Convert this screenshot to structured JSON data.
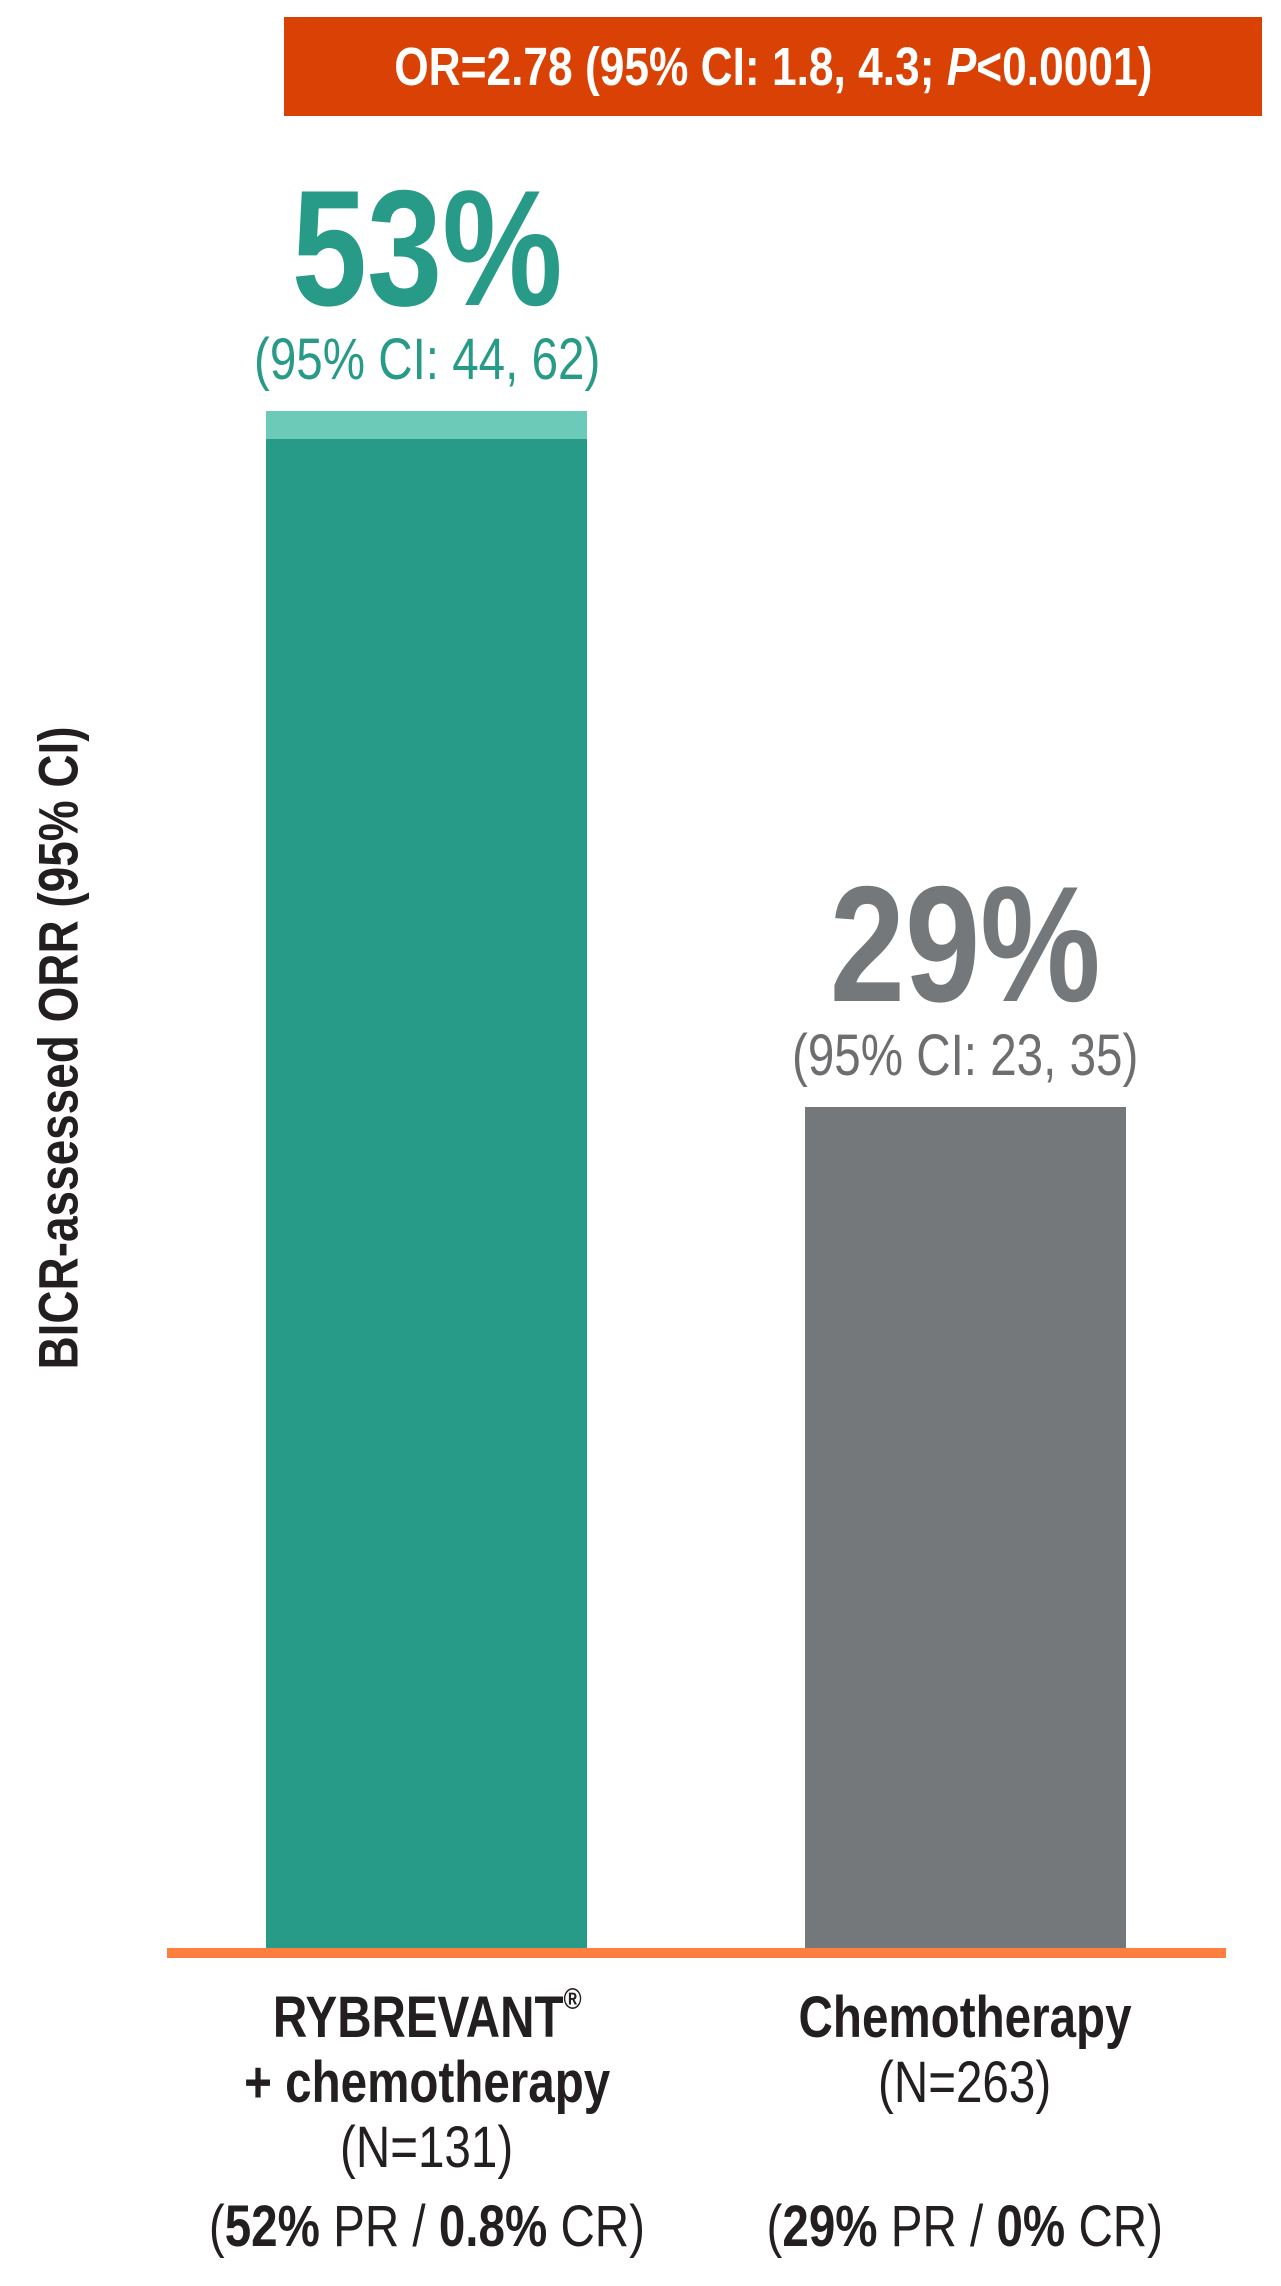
{
  "banner": {
    "prefix": "OR=2.78 (95% CI: 1.8, 4.3; ",
    "p": "P",
    "suffix": "<0.0001)"
  },
  "colors": {
    "banner": "#d94204",
    "axis": "#ff7f41",
    "teal": "#279a88",
    "teal_ci": "#6ccab8",
    "gray": "#75787b",
    "gray_text": "#6d6e70"
  },
  "chart_data": {
    "type": "bar",
    "ylabel": "BICR-assessed ORR (95% CI)",
    "categories": [
      "RYBREVANT® + chemotherapy",
      "Chemotherapy"
    ],
    "values": [
      53,
      29
    ],
    "ci": [
      [
        44,
        62
      ],
      [
        23,
        35
      ]
    ],
    "grid": false,
    "bars": [
      {
        "value_label": "53%",
        "ci_label": "(95% CI: 44, 62)",
        "name_line1": "RYBREVANT",
        "name_mark": "®",
        "name_line2": "+ chemotherapy",
        "n": "(N=131)",
        "pr": "52%",
        "pr_label": " PR / ",
        "cr": "0.8%",
        "cr_label": " CR)"
      },
      {
        "value_label": "29%",
        "ci_label": "(95% CI: 23, 35)",
        "name_line1": "Chemotherapy",
        "n": "(N=263)",
        "pr": "29%",
        "pr_label": " PR / ",
        "cr": "0%",
        "cr_label": " CR)"
      }
    ]
  }
}
